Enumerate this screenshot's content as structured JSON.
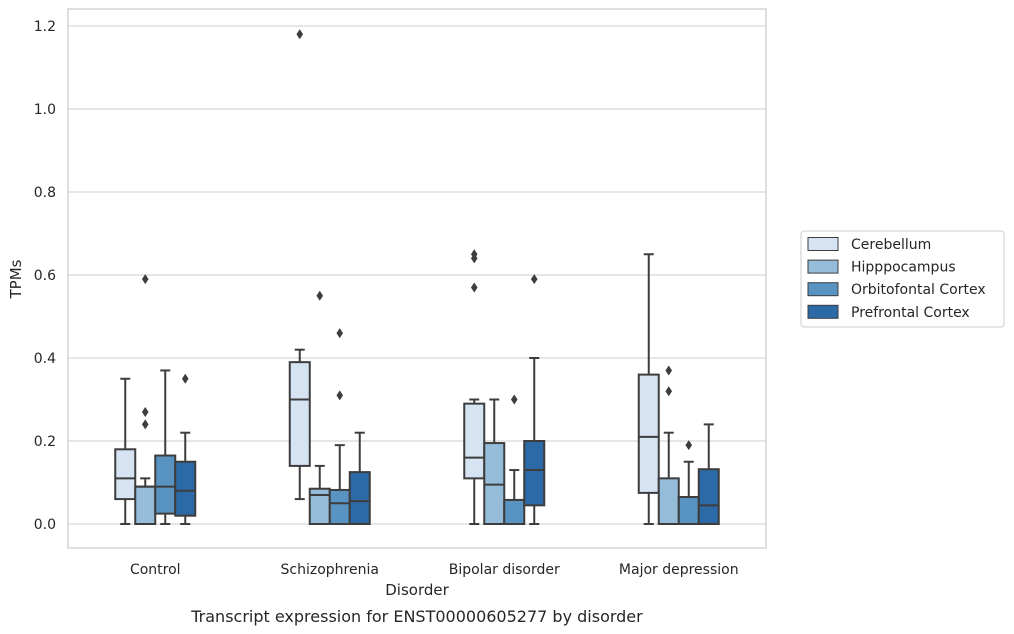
{
  "chart_data": {
    "type": "box",
    "caption": "Transcript expression for ENST00000605277 by disorder",
    "xlabel": "Disorder",
    "ylabel": "TPMs",
    "ylim": [
      -0.057,
      1.24
    ],
    "yticks": [
      0.0,
      0.2,
      0.4,
      0.6,
      0.8,
      1.0,
      1.2
    ],
    "ytick_labels": [
      "0.0",
      "0.2",
      "0.4",
      "0.6",
      "0.8",
      "1.0",
      "1.2"
    ],
    "grid": "horizontal",
    "legend_position": "right",
    "categories": [
      "Control",
      "Schizophrenia",
      "Bipolar disorder",
      "Major depression"
    ],
    "series": [
      {
        "name": "Cerebellum",
        "color": "#d5e3f2",
        "boxes": [
          {
            "whisker_low": 0.0,
            "q1": 0.06,
            "median": 0.11,
            "q3": 0.18,
            "whisker_high": 0.35,
            "outliers": []
          },
          {
            "whisker_low": 0.06,
            "q1": 0.14,
            "median": 0.3,
            "q3": 0.39,
            "whisker_high": 0.42,
            "outliers": [
              1.18
            ]
          },
          {
            "whisker_low": 0.0,
            "q1": 0.11,
            "median": 0.16,
            "q3": 0.29,
            "whisker_high": 0.3,
            "outliers": [
              0.57,
              0.64,
              0.65
            ]
          },
          {
            "whisker_low": 0.0,
            "q1": 0.075,
            "median": 0.21,
            "q3": 0.36,
            "whisker_high": 0.65,
            "outliers": []
          }
        ]
      },
      {
        "name": "Hipppocampus",
        "color": "#95bdd9",
        "boxes": [
          {
            "whisker_low": 0.0,
            "q1": 0.0,
            "median": 0.09,
            "q3": 0.09,
            "whisker_high": 0.11,
            "outliers": [
              0.24,
              0.27,
              0.59
            ]
          },
          {
            "whisker_low": 0.0,
            "q1": 0.0,
            "median": 0.07,
            "q3": 0.085,
            "whisker_high": 0.14,
            "outliers": [
              0.55
            ]
          },
          {
            "whisker_low": 0.0,
            "q1": 0.0,
            "median": 0.095,
            "q3": 0.195,
            "whisker_high": 0.3,
            "outliers": []
          },
          {
            "whisker_low": 0.0,
            "q1": 0.0,
            "median": 0.0,
            "q3": 0.11,
            "whisker_high": 0.22,
            "outliers": [
              0.32,
              0.37
            ]
          }
        ]
      },
      {
        "name": "Orbitofontal Cortex",
        "color": "#5893c2",
        "boxes": [
          {
            "whisker_low": 0.0,
            "q1": 0.025,
            "median": 0.09,
            "q3": 0.165,
            "whisker_high": 0.37,
            "outliers": []
          },
          {
            "whisker_low": 0.0,
            "q1": 0.0,
            "median": 0.05,
            "q3": 0.082,
            "whisker_high": 0.19,
            "outliers": [
              0.31,
              0.46
            ]
          },
          {
            "whisker_low": 0.0,
            "q1": 0.0,
            "median": 0.0,
            "q3": 0.058,
            "whisker_high": 0.13,
            "outliers": [
              0.3
            ]
          },
          {
            "whisker_low": 0.0,
            "q1": 0.0,
            "median": 0.0,
            "q3": 0.065,
            "whisker_high": 0.15,
            "outliers": [
              0.19
            ]
          }
        ]
      },
      {
        "name": "Prefrontal Cortex",
        "color": "#2b6aa6",
        "boxes": [
          {
            "whisker_low": 0.0,
            "q1": 0.02,
            "median": 0.08,
            "q3": 0.15,
            "whisker_high": 0.22,
            "outliers": [
              0.35
            ]
          },
          {
            "whisker_low": 0.0,
            "q1": 0.0,
            "median": 0.055,
            "q3": 0.125,
            "whisker_high": 0.22,
            "outliers": []
          },
          {
            "whisker_low": 0.0,
            "q1": 0.045,
            "median": 0.13,
            "q3": 0.2,
            "whisker_high": 0.4,
            "outliers": [
              0.59
            ]
          },
          {
            "whisker_low": 0.0,
            "q1": 0.0,
            "median": 0.045,
            "q3": 0.132,
            "whisker_high": 0.24,
            "outliers": []
          }
        ]
      }
    ]
  }
}
